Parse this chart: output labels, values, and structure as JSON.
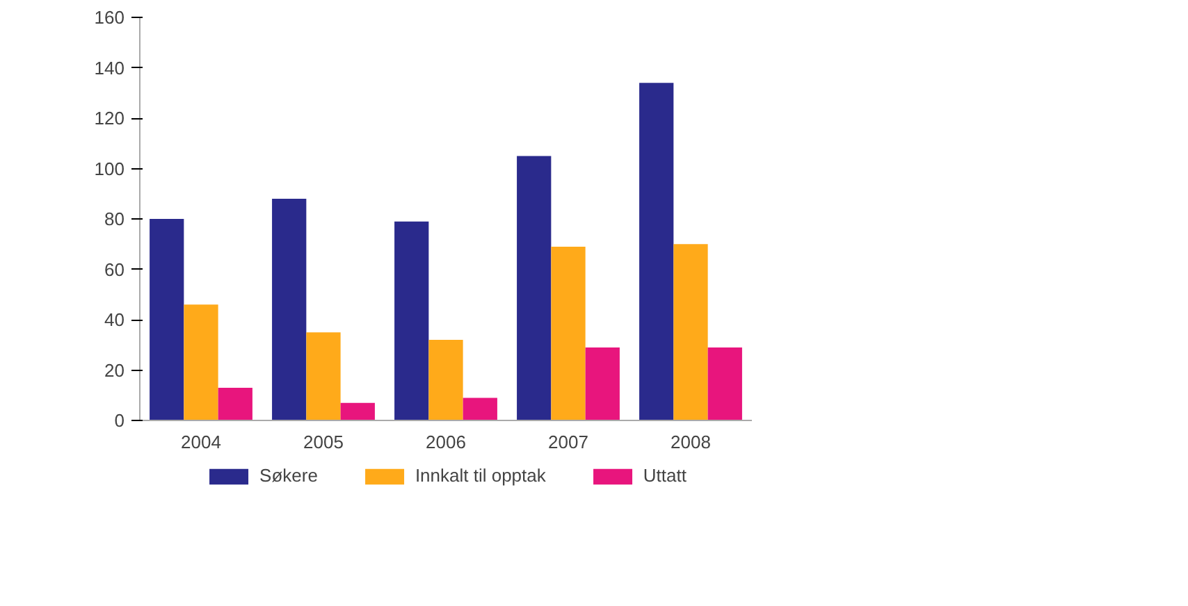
{
  "chart_data": {
    "type": "bar",
    "categories": [
      "2004",
      "2005",
      "2006",
      "2007",
      "2008"
    ],
    "series": [
      {
        "name": "Søkere",
        "color": "#2a2a8c",
        "values": [
          80,
          88,
          79,
          105,
          134
        ]
      },
      {
        "name": "Innkalt til opptak",
        "color": "#ffaa1a",
        "values": [
          46,
          35,
          32,
          69,
          70
        ]
      },
      {
        "name": "Uttatt",
        "color": "#e8157d",
        "values": [
          13,
          7,
          9,
          29,
          29
        ]
      }
    ],
    "ylim": [
      0,
      160
    ],
    "yticks": [
      0,
      20,
      40,
      60,
      80,
      100,
      120,
      140,
      160
    ],
    "grid": false,
    "legend": "bottom"
  }
}
